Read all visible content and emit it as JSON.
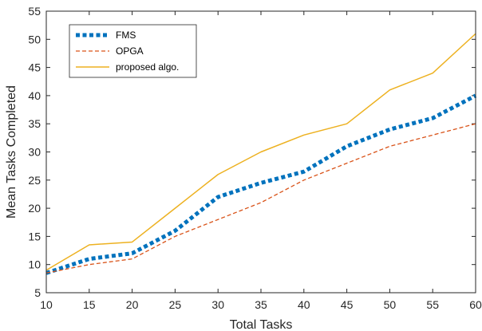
{
  "chart_data": {
    "type": "line",
    "xlabel": "Total Tasks",
    "ylabel": "Mean Tasks Completed",
    "x": [
      10,
      15,
      20,
      25,
      30,
      35,
      40,
      45,
      50,
      55,
      60
    ],
    "xlim": [
      10,
      60
    ],
    "ylim": [
      5,
      55
    ],
    "xticks": [
      10,
      15,
      20,
      25,
      30,
      35,
      40,
      45,
      50,
      55,
      60
    ],
    "yticks": [
      5,
      10,
      15,
      20,
      25,
      30,
      35,
      40,
      45,
      50,
      55
    ],
    "grid": false,
    "legend_position": "top-left",
    "series": [
      {
        "name": "FMS",
        "color": "#0072BD",
        "style": "dotted",
        "values": [
          8.5,
          11,
          12,
          16,
          22,
          24.5,
          26.5,
          31,
          34,
          36,
          40
        ]
      },
      {
        "name": "OPGA",
        "color": "#D95319",
        "style": "dashed",
        "values": [
          8.5,
          10,
          11,
          15,
          18,
          21,
          25,
          28,
          31,
          33,
          35
        ]
      },
      {
        "name": "proposed algo.",
        "color": "#EDB120",
        "style": "solid",
        "values": [
          9,
          13.5,
          14,
          20,
          26,
          30,
          33,
          35,
          41,
          44,
          51
        ]
      }
    ]
  }
}
